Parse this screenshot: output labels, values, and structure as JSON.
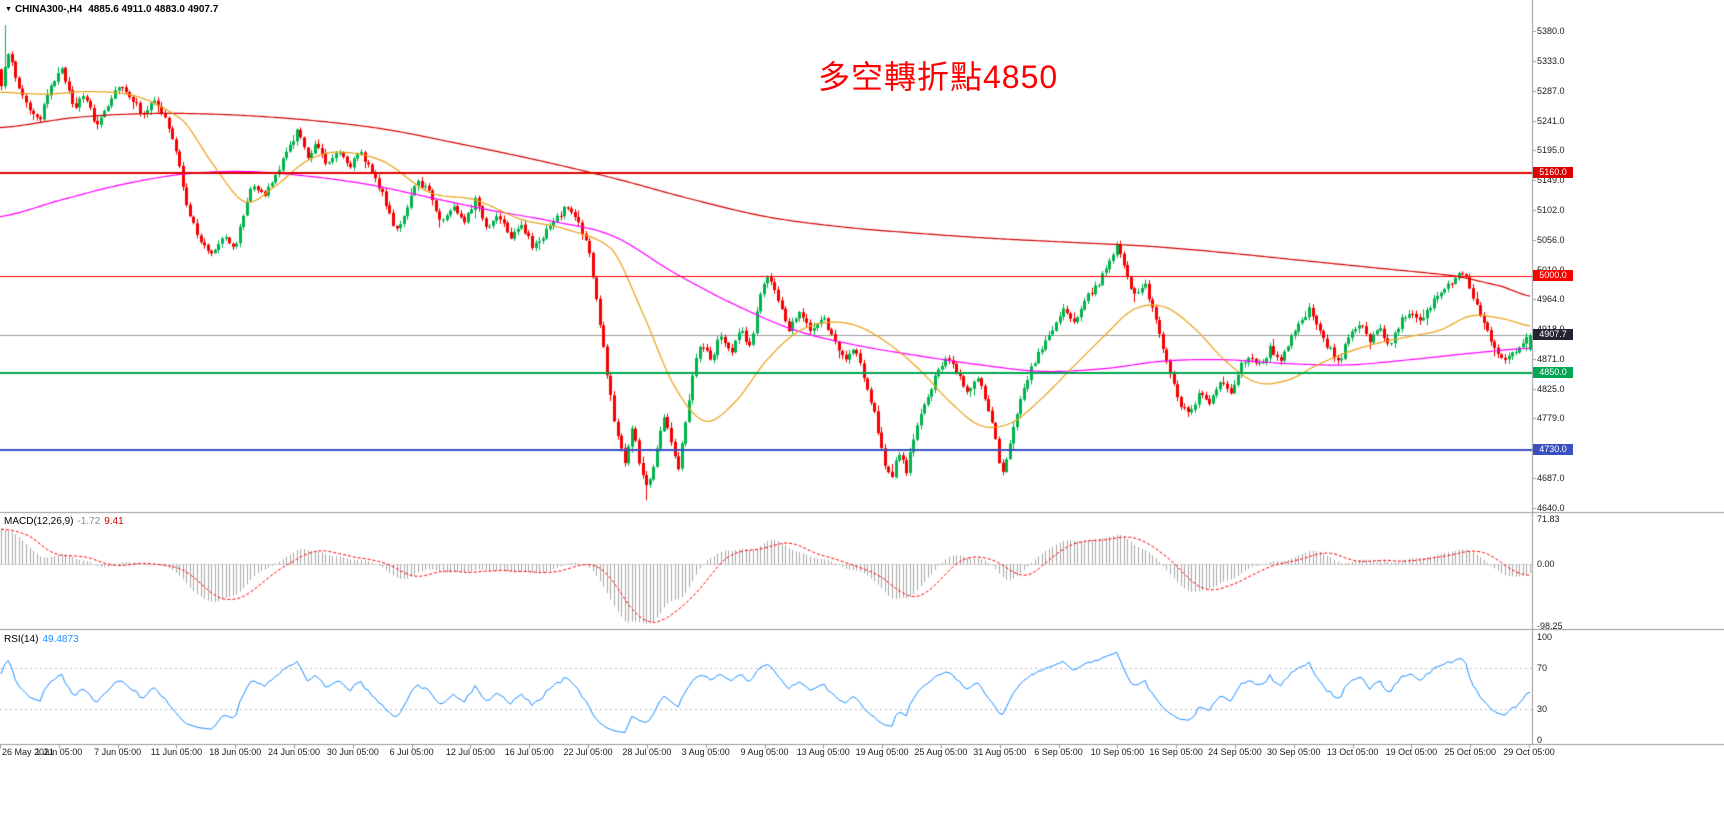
{
  "header": {
    "symbol_label": "CHINA300-,H4",
    "ohlc": "4885.6 4911.0 4883.0 4907.7"
  },
  "annotation": {
    "text": "多空轉折點4850",
    "color": "#ff0000"
  },
  "chart_data": {
    "type": "candlestick",
    "symbol": "CHINA300-",
    "timeframe": "H4",
    "bars": 430,
    "ohlc_current": {
      "open": 4885.6,
      "high": 4911.0,
      "low": 4883.0,
      "close": 4907.7
    },
    "colors": {
      "bull": "#00b34c",
      "bear": "#f40000"
    },
    "y_ticks": [
      "5380.0",
      "5333.0",
      "5287.0",
      "5241.0",
      "5195.0",
      "5149.0",
      "5102.0",
      "5056.0",
      "5010.0",
      "4964.0",
      "4918.0",
      "4871.0",
      "4825.0",
      "4779.0",
      "4733.0",
      "4687.0",
      "4640.0"
    ],
    "x_labels": [
      "26 May 2021",
      "1 Jun 05:00",
      "7 Jun 05:00",
      "11 Jun 05:00",
      "18 Jun 05:00",
      "24 Jun 05:00",
      "30 Jun 05:00",
      "6 Jul 05:00",
      "12 Jul 05:00",
      "16 Jul 05:00",
      "22 Jul 05:00",
      "28 Jul 05:00",
      "3 Aug 05:00",
      "9 Aug 05:00",
      "13 Aug 05:00",
      "19 Aug 05:00",
      "25 Aug 05:00",
      "31 Aug 05:00",
      "6 Sep 05:00",
      "10 Sep 05:00",
      "16 Sep 05:00",
      "24 Sep 05:00",
      "30 Sep 05:00",
      "13 Oct 05:00",
      "19 Oct 05:00",
      "25 Oct 05:00",
      "29 Oct 05:00"
    ],
    "hlines": [
      {
        "price": 5160.0,
        "label": "5160.0",
        "color": "#dd0000",
        "width": 2
      },
      {
        "price": 5000.0,
        "label": "5000.0",
        "color": "#ff0000",
        "width": 1
      },
      {
        "price": 4850.0,
        "label": "4850.0",
        "color": "#00a651",
        "width": 2
      },
      {
        "price": 4730.0,
        "label": "4730.0",
        "color": "#3a50c2",
        "width": 2
      }
    ],
    "current_price": {
      "price": 4907.7,
      "label": "4907.7",
      "line_color": "#9a9a9a",
      "badge_color": "#232334"
    },
    "extremes": {
      "spike_high": 5389,
      "crash_low": 4652
    },
    "price_path": [
      [
        0,
        5290
      ],
      [
        0.004,
        5355
      ],
      [
        0.01,
        5300
      ],
      [
        0.018,
        5262
      ],
      [
        0.025,
        5235
      ],
      [
        0.032,
        5298
      ],
      [
        0.04,
        5318
      ],
      [
        0.048,
        5262
      ],
      [
        0.055,
        5280
      ],
      [
        0.062,
        5232
      ],
      [
        0.07,
        5268
      ],
      [
        0.077,
        5298
      ],
      [
        0.085,
        5278
      ],
      [
        0.092,
        5252
      ],
      [
        0.1,
        5270
      ],
      [
        0.108,
        5242
      ],
      [
        0.115,
        5185
      ],
      [
        0.122,
        5105
      ],
      [
        0.13,
        5052
      ],
      [
        0.138,
        5035
      ],
      [
        0.146,
        5068
      ],
      [
        0.152,
        5040
      ],
      [
        0.158,
        5088
      ],
      [
        0.164,
        5148
      ],
      [
        0.172,
        5122
      ],
      [
        0.18,
        5158
      ],
      [
        0.188,
        5198
      ],
      [
        0.194,
        5228
      ],
      [
        0.2,
        5182
      ],
      [
        0.206,
        5210
      ],
      [
        0.213,
        5172
      ],
      [
        0.22,
        5198
      ],
      [
        0.228,
        5172
      ],
      [
        0.235,
        5190
      ],
      [
        0.243,
        5162
      ],
      [
        0.25,
        5122
      ],
      [
        0.258,
        5072
      ],
      [
        0.265,
        5098
      ],
      [
        0.272,
        5148
      ],
      [
        0.28,
        5132
      ],
      [
        0.288,
        5082
      ],
      [
        0.295,
        5108
      ],
      [
        0.303,
        5088
      ],
      [
        0.31,
        5118
      ],
      [
        0.318,
        5072
      ],
      [
        0.325,
        5098
      ],
      [
        0.333,
        5062
      ],
      [
        0.34,
        5082
      ],
      [
        0.348,
        5042
      ],
      [
        0.356,
        5068
      ],
      [
        0.363,
        5088
      ],
      [
        0.37,
        5108
      ],
      [
        0.378,
        5082
      ],
      [
        0.384,
        5042
      ],
      [
        0.39,
        4952
      ],
      [
        0.396,
        4852
      ],
      [
        0.402,
        4762
      ],
      [
        0.408,
        4712
      ],
      [
        0.413,
        4768
      ],
      [
        0.418,
        4702
      ],
      [
        0.423,
        4668
      ],
      [
        0.428,
        4722
      ],
      [
        0.433,
        4788
      ],
      [
        0.438,
        4748
      ],
      [
        0.443,
        4702
      ],
      [
        0.448,
        4782
      ],
      [
        0.453,
        4858
      ],
      [
        0.458,
        4898
      ],
      [
        0.464,
        4868
      ],
      [
        0.47,
        4908
      ],
      [
        0.477,
        4878
      ],
      [
        0.484,
        4918
      ],
      [
        0.49,
        4888
      ],
      [
        0.496,
        4968
      ],
      [
        0.502,
        5004
      ],
      [
        0.508,
        4958
      ],
      [
        0.515,
        4918
      ],
      [
        0.522,
        4948
      ],
      [
        0.53,
        4908
      ],
      [
        0.537,
        4938
      ],
      [
        0.545,
        4898
      ],
      [
        0.552,
        4868
      ],
      [
        0.558,
        4888
      ],
      [
        0.565,
        4838
      ],
      [
        0.571,
        4788
      ],
      [
        0.577,
        4718
      ],
      [
        0.582,
        4678
      ],
      [
        0.587,
        4728
      ],
      [
        0.592,
        4698
      ],
      [
        0.598,
        4758
      ],
      [
        0.605,
        4808
      ],
      [
        0.612,
        4848
      ],
      [
        0.619,
        4878
      ],
      [
        0.626,
        4848
      ],
      [
        0.632,
        4818
      ],
      [
        0.638,
        4848
      ],
      [
        0.645,
        4798
      ],
      [
        0.65,
        4748
      ],
      [
        0.654,
        4688
      ],
      [
        0.659,
        4728
      ],
      [
        0.665,
        4798
      ],
      [
        0.672,
        4848
      ],
      [
        0.68,
        4888
      ],
      [
        0.688,
        4918
      ],
      [
        0.695,
        4948
      ],
      [
        0.702,
        4928
      ],
      [
        0.71,
        4968
      ],
      [
        0.718,
        4988
      ],
      [
        0.725,
        5028
      ],
      [
        0.73,
        5048
      ],
      [
        0.736,
        4998
      ],
      [
        0.742,
        4968
      ],
      [
        0.748,
        4988
      ],
      [
        0.754,
        4938
      ],
      [
        0.76,
        4888
      ],
      [
        0.766,
        4838
      ],
      [
        0.772,
        4798
      ],
      [
        0.778,
        4788
      ],
      [
        0.784,
        4818
      ],
      [
        0.79,
        4798
      ],
      [
        0.797,
        4838
      ],
      [
        0.804,
        4818
      ],
      [
        0.81,
        4858
      ],
      [
        0.817,
        4878
      ],
      [
        0.824,
        4858
      ],
      [
        0.83,
        4888
      ],
      [
        0.836,
        4868
      ],
      [
        0.842,
        4898
      ],
      [
        0.85,
        4928
      ],
      [
        0.856,
        4948
      ],
      [
        0.862,
        4918
      ],
      [
        0.868,
        4888
      ],
      [
        0.875,
        4868
      ],
      [
        0.882,
        4908
      ],
      [
        0.888,
        4928
      ],
      [
        0.895,
        4898
      ],
      [
        0.902,
        4918
      ],
      [
        0.908,
        4888
      ],
      [
        0.915,
        4928
      ],
      [
        0.922,
        4948
      ],
      [
        0.929,
        4928
      ],
      [
        0.936,
        4958
      ],
      [
        0.943,
        4978
      ],
      [
        0.95,
        4994
      ],
      [
        0.957,
        5008
      ],
      [
        0.963,
        4968
      ],
      [
        0.97,
        4928
      ],
      [
        0.977,
        4888
      ],
      [
        0.984,
        4868
      ],
      [
        0.99,
        4880
      ],
      [
        1,
        4907.7
      ]
    ],
    "ma_lines": [
      {
        "name": "ma-slow",
        "color": "#d40000",
        "path": [
          [
            0,
            5230
          ],
          [
            0.05,
            5246
          ],
          [
            0.1,
            5252
          ],
          [
            0.15,
            5250
          ],
          [
            0.2,
            5242
          ],
          [
            0.25,
            5228
          ],
          [
            0.3,
            5205
          ],
          [
            0.35,
            5180
          ],
          [
            0.4,
            5152
          ],
          [
            0.45,
            5120
          ],
          [
            0.5,
            5092
          ],
          [
            0.55,
            5076
          ],
          [
            0.6,
            5066
          ],
          [
            0.65,
            5058
          ],
          [
            0.7,
            5052
          ],
          [
            0.75,
            5046
          ],
          [
            0.8,
            5036
          ],
          [
            0.85,
            5024
          ],
          [
            0.9,
            5012
          ],
          [
            0.95,
            5000
          ],
          [
            0.98,
            4984
          ],
          [
            1,
            4968
          ]
        ]
      },
      {
        "name": "ma-mid",
        "color": "#ff00ff",
        "path": [
          [
            0,
            5092
          ],
          [
            0.04,
            5118
          ],
          [
            0.08,
            5142
          ],
          [
            0.12,
            5158
          ],
          [
            0.16,
            5162
          ],
          [
            0.2,
            5155
          ],
          [
            0.24,
            5142
          ],
          [
            0.28,
            5122
          ],
          [
            0.32,
            5102
          ],
          [
            0.36,
            5085
          ],
          [
            0.4,
            5062
          ],
          [
            0.44,
            5005
          ],
          [
            0.48,
            4955
          ],
          [
            0.52,
            4915
          ],
          [
            0.56,
            4892
          ],
          [
            0.6,
            4876
          ],
          [
            0.64,
            4862
          ],
          [
            0.68,
            4852
          ],
          [
            0.72,
            4856
          ],
          [
            0.76,
            4868
          ],
          [
            0.8,
            4870
          ],
          [
            0.84,
            4864
          ],
          [
            0.88,
            4862
          ],
          [
            0.92,
            4870
          ],
          [
            0.96,
            4880
          ],
          [
            1,
            4888
          ]
        ]
      },
      {
        "name": "ma-fast",
        "color": "#eba219",
        "path": [
          [
            0,
            5285
          ],
          [
            0.03,
            5282
          ],
          [
            0.06,
            5286
          ],
          [
            0.09,
            5278
          ],
          [
            0.12,
            5240
          ],
          [
            0.14,
            5170
          ],
          [
            0.16,
            5115
          ],
          [
            0.18,
            5140
          ],
          [
            0.2,
            5178
          ],
          [
            0.22,
            5192
          ],
          [
            0.25,
            5178
          ],
          [
            0.28,
            5130
          ],
          [
            0.31,
            5118
          ],
          [
            0.34,
            5088
          ],
          [
            0.37,
            5072
          ],
          [
            0.4,
            5040
          ],
          [
            0.42,
            4940
          ],
          [
            0.44,
            4830
          ],
          [
            0.46,
            4775
          ],
          [
            0.48,
            4805
          ],
          [
            0.5,
            4868
          ],
          [
            0.52,
            4912
          ],
          [
            0.54,
            4928
          ],
          [
            0.56,
            4922
          ],
          [
            0.58,
            4895
          ],
          [
            0.6,
            4855
          ],
          [
            0.62,
            4805
          ],
          [
            0.64,
            4768
          ],
          [
            0.66,
            4772
          ],
          [
            0.68,
            4810
          ],
          [
            0.7,
            4858
          ],
          [
            0.72,
            4905
          ],
          [
            0.74,
            4948
          ],
          [
            0.76,
            4952
          ],
          [
            0.78,
            4918
          ],
          [
            0.8,
            4868
          ],
          [
            0.82,
            4835
          ],
          [
            0.84,
            4838
          ],
          [
            0.86,
            4862
          ],
          [
            0.88,
            4882
          ],
          [
            0.9,
            4896
          ],
          [
            0.92,
            4906
          ],
          [
            0.94,
            4916
          ],
          [
            0.96,
            4938
          ],
          [
            0.98,
            4934
          ],
          [
            1,
            4922
          ]
        ]
      }
    ],
    "indicators": {
      "macd": {
        "label": "MACD(12,26,9)",
        "value_main": "-1.72",
        "value_signal": "9.41",
        "scale_ticks": [
          "71.83",
          "0.00",
          "-98.25"
        ],
        "histogram_color": "#a8a8a8",
        "signal_color": "#ff0000"
      },
      "rsi": {
        "label": "RSI(14)",
        "value": "49.4873",
        "scale_ticks": [
          "100",
          "70",
          "30",
          "0"
        ],
        "levels": [
          70,
          30
        ],
        "line_color": "#1E90FF"
      }
    }
  }
}
